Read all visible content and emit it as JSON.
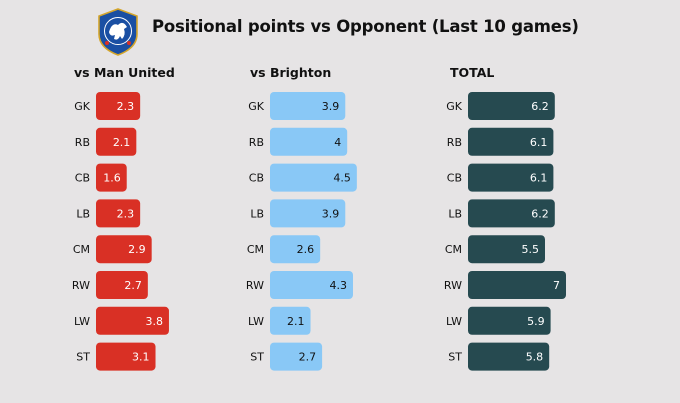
{
  "header": {
    "title": "Positional points vs Opponent (Last 10 games)"
  },
  "chart_data": [
    {
      "type": "bar",
      "orientation": "horizontal",
      "title": "vs Man United",
      "categories": [
        "GK",
        "RB",
        "CB",
        "LB",
        "CM",
        "RW",
        "LW",
        "ST"
      ],
      "values": [
        2.3,
        2.1,
        1.6,
        2.3,
        2.9,
        2.7,
        3.8,
        3.1
      ],
      "color": "#d93025",
      "label_color": "#ffffff"
    },
    {
      "type": "bar",
      "orientation": "horizontal",
      "title": "vs Brighton",
      "categories": [
        "GK",
        "RB",
        "CB",
        "LB",
        "CM",
        "RW",
        "LW",
        "ST"
      ],
      "values": [
        3.9,
        4,
        4.5,
        3.9,
        2.6,
        4.3,
        2.1,
        2.7
      ],
      "color": "#89c8f6",
      "label_color": "#111111"
    },
    {
      "type": "bar",
      "orientation": "horizontal",
      "title": "TOTAL",
      "categories": [
        "GK",
        "RB",
        "CB",
        "LB",
        "CM",
        "RW",
        "LW",
        "ST"
      ],
      "values": [
        6.2,
        6.1,
        6.1,
        6.2,
        5.5,
        7,
        5.9,
        5.8
      ],
      "color": "#264a50",
      "label_color": "#ffffff"
    }
  ]
}
